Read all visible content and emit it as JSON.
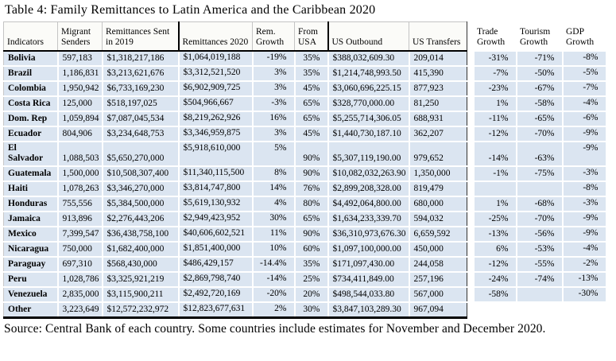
{
  "title": "Table 4: Family Remittances to Latin America and the Caribbean 2020",
  "source_note": "Source: Central Bank of each country.  Some countries include estimates for November and December 2020.",
  "colors": {
    "row_background": "#dbe5f1",
    "header_background": "#fbfbf8",
    "rule_black": "#000000",
    "grid_white": "#ffffff"
  },
  "table": {
    "columns": [
      {
        "key": "indicator",
        "label": "Indicators"
      },
      {
        "key": "migrant_senders",
        "label": "Migrant Senders"
      },
      {
        "key": "rem_2019",
        "label": "Remittances Sent in 2019"
      },
      {
        "key": "rem_2020",
        "label": "Remittances 2020"
      },
      {
        "key": "rem_growth",
        "label": "Rem. Growth"
      },
      {
        "key": "from_usa",
        "label": "From USA"
      },
      {
        "key": "us_outbound",
        "label": "US Outbound"
      },
      {
        "key": "us_transfers",
        "label": "US Transfers"
      },
      {
        "key": "trade_growth",
        "label": "Trade Growth"
      },
      {
        "key": "tourism_growth",
        "label": "Tourism Growth"
      },
      {
        "key": "gdp_growth",
        "label": "GDP Growth"
      }
    ],
    "rows": [
      [
        "Bolivia",
        "597,183",
        "$1,318,217,186",
        "$1,064,019,188",
        "-19%",
        "35%",
        "$388,032,609.30",
        "209,014",
        "-31%",
        "-71%",
        "-8%"
      ],
      [
        "Brazil",
        "1,186,831",
        "$3,213,621,676",
        "$3,312,521,520",
        "3%",
        "35%",
        "$1,214,748,993.50",
        "415,390",
        "-7%",
        "-50%",
        "-5%"
      ],
      [
        "Colombia",
        "1,950,942",
        "$6,733,169,230",
        "$6,902,909,725",
        "3%",
        "45%",
        "$3,060,696,225.15",
        "877,923",
        "-23%",
        "-67%",
        "-7%"
      ],
      [
        "Costa Rica",
        "125,000",
        "$518,197,025",
        "$504,966,667",
        "-3%",
        "65%",
        "$328,770,000.00",
        "81,250",
        "1%",
        "-58%",
        "-4%"
      ],
      [
        "Dom. Rep",
        "1,059,894",
        "$7,087,045,534",
        "$8,219,262,926",
        "16%",
        "65%",
        "$5,255,714,306.05",
        "688,931",
        "-11%",
        "-65%",
        "-6%"
      ],
      [
        "Ecuador",
        "804,906",
        "$3,234,648,753",
        "$3,346,959,875",
        "3%",
        "45%",
        "$1,440,730,187.10",
        "362,207",
        "-12%",
        "-70%",
        "-9%"
      ],
      [
        "El Salvador",
        "1,088,503",
        "$5,650,270,000",
        "$5,918,610,000",
        "5%",
        "90%",
        "$5,307,119,190.00",
        "979,652",
        "-14%",
        "-63%",
        "-9%"
      ],
      [
        "Guatemala",
        "1,500,000",
        "$10,508,307,400",
        "$11,340,115,500",
        "8%",
        "90%",
        "$10,082,032,263.90",
        "1,350,000",
        "-1%",
        "-75%",
        "-3%"
      ],
      [
        "Haiti",
        "1,078,263",
        "$3,346,270,000",
        "$3,814,747,800",
        "14%",
        "76%",
        "$2,899,208,328.00",
        "819,479",
        "",
        "",
        "-8%"
      ],
      [
        "Honduras",
        "755,556",
        "$5,384,500,000",
        "$5,619,130,932",
        "4%",
        "80%",
        "$4,492,064,800.00",
        "680,000",
        "1%",
        "-68%",
        "-3%"
      ],
      [
        "Jamaica",
        "913,896",
        "$2,276,443,206",
        "$2,949,423,952",
        "30%",
        "65%",
        "$1,634,233,339.70",
        "594,032",
        "-25%",
        "-70%",
        "-9%"
      ],
      [
        "Mexico",
        "7,399,547",
        "$36,438,758,100",
        "$40,606,602,521",
        "11%",
        "90%",
        "$36,310,973,676.30",
        "6,659,592",
        "-13%",
        "-56%",
        "-9%"
      ],
      [
        "Nicaragua",
        "750,000",
        "$1,682,400,000",
        "$1,851,400,000",
        "10%",
        "60%",
        "$1,097,100,000.00",
        "450,000",
        "6%",
        "-53%",
        "-4%"
      ],
      [
        "Paraguay",
        "697,310",
        "$568,430,000",
        "$486,429,157",
        "-14.4%",
        "35%",
        "$171,097,430.00",
        "244,058",
        "-12%",
        "-55%",
        "-2%"
      ],
      [
        "Peru",
        "1,028,786",
        "$3,325,921,219",
        "$2,869,798,740",
        "-14%",
        "25%",
        "$734,411,849.00",
        "257,196",
        "-24%",
        "-74%",
        "-13%"
      ],
      [
        "Venezuela",
        "2,835,000",
        "$3,115,900,211",
        "$2,492,720,169",
        "-20%",
        "20%",
        "$498,544,033.80",
        "567,000",
        "-58%",
        "",
        "-30%"
      ],
      [
        "Other",
        "3,223,649",
        "$12,572,232,972",
        "$12,823,677,631",
        "2%",
        "30%",
        "$3,847,103,289.30",
        "967,094",
        "",
        "",
        ""
      ]
    ]
  }
}
